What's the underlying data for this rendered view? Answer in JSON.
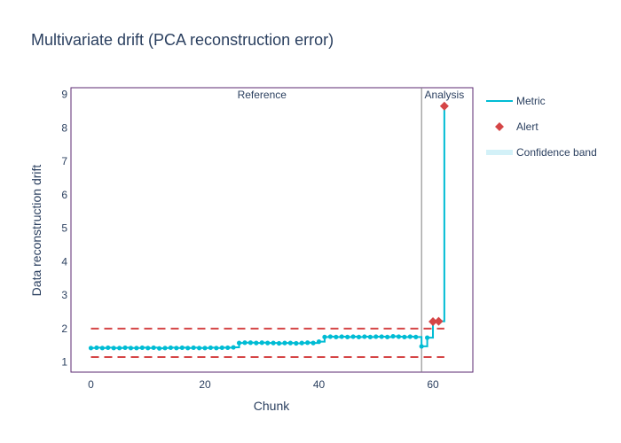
{
  "chart_data": {
    "type": "line",
    "title": "Multivariate drift (PCA reconstruction error)",
    "xlabel": "Chunk",
    "ylabel": "Data reconstruction drift",
    "xlim": [
      -3.5,
      67
    ],
    "ylim": [
      0.7,
      9.2
    ],
    "x_ticks": [
      0,
      20,
      40,
      60
    ],
    "y_ticks": [
      1,
      2,
      3,
      4,
      5,
      6,
      7,
      8,
      9
    ],
    "grid": false,
    "legend_position": "right",
    "period_split": 58,
    "periods": [
      {
        "label": "Reference",
        "x_center": 30
      },
      {
        "label": "Analysis",
        "x_center": 62
      }
    ],
    "thresholds": {
      "upper": 2.0,
      "lower": 1.15
    },
    "series": [
      {
        "name": "Metric",
        "color": "#00bcd4",
        "x": [
          0,
          1,
          2,
          3,
          4,
          5,
          6,
          7,
          8,
          9,
          10,
          11,
          12,
          13,
          14,
          15,
          16,
          17,
          18,
          19,
          20,
          21,
          22,
          23,
          24,
          25,
          26,
          27,
          28,
          29,
          30,
          31,
          32,
          33,
          34,
          35,
          36,
          37,
          38,
          39,
          40,
          41,
          42,
          43,
          44,
          45,
          46,
          47,
          48,
          49,
          50,
          51,
          52,
          53,
          54,
          55,
          56,
          57,
          58,
          59,
          60,
          61,
          62
        ],
        "values": [
          1.42,
          1.43,
          1.42,
          1.43,
          1.42,
          1.42,
          1.43,
          1.42,
          1.42,
          1.43,
          1.42,
          1.43,
          1.41,
          1.42,
          1.43,
          1.42,
          1.43,
          1.42,
          1.43,
          1.42,
          1.42,
          1.43,
          1.42,
          1.43,
          1.43,
          1.44,
          1.57,
          1.58,
          1.58,
          1.57,
          1.58,
          1.57,
          1.57,
          1.56,
          1.57,
          1.57,
          1.56,
          1.57,
          1.58,
          1.57,
          1.61,
          1.75,
          1.76,
          1.75,
          1.76,
          1.75,
          1.76,
          1.75,
          1.76,
          1.75,
          1.76,
          1.76,
          1.75,
          1.77,
          1.76,
          1.75,
          1.76,
          1.75,
          1.47,
          1.73,
          2.21,
          2.22,
          8.65
        ]
      },
      {
        "name": "Alert",
        "color": "#d54546",
        "x": [
          60,
          61,
          62
        ],
        "values": [
          2.21,
          2.22,
          8.65
        ]
      }
    ],
    "legend": [
      {
        "name": "Metric",
        "kind": "line",
        "color": "#00bcd4"
      },
      {
        "name": "Alert",
        "kind": "diamond",
        "color": "#d54546"
      },
      {
        "name": "Confidence band",
        "kind": "band",
        "color": "#d3f1f8"
      }
    ]
  }
}
